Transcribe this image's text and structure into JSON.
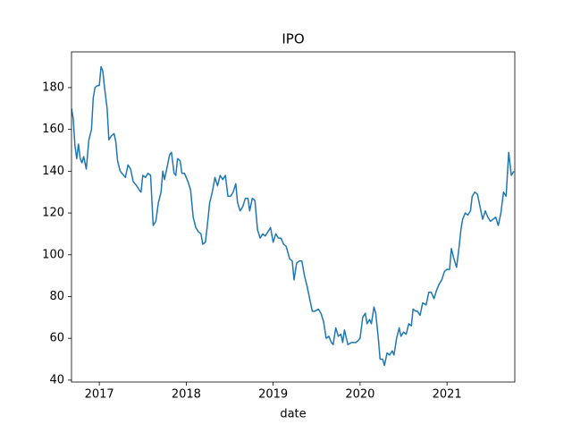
{
  "chart_data": {
    "type": "line",
    "title": "IPO",
    "x_label": "date",
    "x": [
      2016.68,
      2016.7,
      2016.72,
      2016.74,
      2016.76,
      2016.78,
      2016.8,
      2016.82,
      2016.85,
      2016.88,
      2016.91,
      2016.93,
      2016.95,
      2016.98,
      2017.0,
      2017.02,
      2017.04,
      2017.06,
      2017.09,
      2017.11,
      2017.14,
      2017.17,
      2017.19,
      2017.21,
      2017.24,
      2017.28,
      2017.3,
      2017.33,
      2017.36,
      2017.39,
      2017.43,
      2017.46,
      2017.48,
      2017.5,
      2017.53,
      2017.56,
      2017.59,
      2017.62,
      2017.65,
      2017.68,
      2017.71,
      2017.73,
      2017.75,
      2017.78,
      2017.81,
      2017.83,
      2017.86,
      2017.88,
      2017.9,
      2017.93,
      2017.95,
      2017.98,
      2018.02,
      2018.05,
      2018.08,
      2018.11,
      2018.14,
      2018.17,
      2018.19,
      2018.22,
      2018.24,
      2018.27,
      2018.3,
      2018.33,
      2018.36,
      2018.39,
      2018.42,
      2018.45,
      2018.48,
      2018.51,
      2018.54,
      2018.57,
      2018.59,
      2018.62,
      2018.65,
      2018.68,
      2018.71,
      2018.73,
      2018.76,
      2018.79,
      2018.82,
      2018.85,
      2018.88,
      2018.91,
      2018.94,
      2018.97,
      2019.0,
      2019.03,
      2019.06,
      2019.09,
      2019.12,
      2019.15,
      2019.19,
      2019.22,
      2019.24,
      2019.27,
      2019.3,
      2019.33,
      2019.36,
      2019.39,
      2019.42,
      2019.45,
      2019.48,
      2019.52,
      2019.55,
      2019.58,
      2019.61,
      2019.64,
      2019.67,
      2019.69,
      2019.72,
      2019.75,
      2019.78,
      2019.8,
      2019.82,
      2019.86,
      2019.9,
      2019.95,
      2019.98,
      2020.0,
      2020.03,
      2020.06,
      2020.08,
      2020.11,
      2020.13,
      2020.16,
      2020.18,
      2020.21,
      2020.23,
      2020.26,
      2020.28,
      2020.31,
      2020.34,
      2020.37,
      2020.39,
      2020.42,
      2020.45,
      2020.47,
      2020.5,
      2020.53,
      2020.56,
      2020.59,
      2020.61,
      2020.64,
      2020.66,
      2020.69,
      2020.72,
      2020.76,
      2020.79,
      2020.82,
      2020.85,
      2020.88,
      2020.91,
      2020.94,
      2020.97,
      2021.0,
      2021.03,
      2021.05,
      2021.08,
      2021.11,
      2021.14,
      2021.16,
      2021.18,
      2021.21,
      2021.24,
      2021.27,
      2021.29,
      2021.32,
      2021.35,
      2021.38,
      2021.41,
      2021.44,
      2021.47,
      2021.5,
      2021.53,
      2021.56,
      2021.59,
      2021.62,
      2021.65,
      2021.68,
      2021.71,
      2021.74,
      2021.77
    ],
    "series": [
      {
        "color": "#1f77b4",
        "values": [
          170,
          165,
          152,
          146,
          153,
          146,
          144,
          147,
          141,
          155,
          160,
          175,
          180,
          181,
          181,
          190,
          188,
          180,
          170,
          155,
          157,
          158,
          154,
          145,
          140,
          138,
          137,
          143,
          141,
          135,
          133,
          131,
          130,
          138,
          137,
          139,
          138,
          114,
          116,
          125,
          130,
          140,
          136,
          142,
          148,
          149,
          139,
          138,
          146,
          145,
          139,
          139,
          135,
          131,
          118,
          113,
          111,
          110,
          105,
          106,
          113,
          125,
          130,
          137,
          133,
          138,
          136,
          138,
          128,
          128,
          130,
          134,
          125,
          121,
          123,
          127,
          127,
          121,
          127,
          126,
          112,
          108,
          110,
          109,
          111,
          113,
          106,
          110,
          108,
          108,
          105,
          104,
          98,
          97,
          88,
          96,
          97,
          97,
          90,
          85,
          79,
          73,
          73,
          74,
          72,
          68,
          60,
          61,
          58,
          57,
          65,
          61,
          62,
          58,
          64,
          57,
          58,
          58,
          59,
          60,
          70,
          72,
          67,
          69,
          67,
          75,
          72,
          60,
          50,
          50,
          47,
          53,
          52,
          54,
          52,
          60,
          65,
          61,
          63,
          62,
          67,
          66,
          74,
          73,
          73,
          71,
          77,
          76,
          82,
          82,
          79,
          83,
          86,
          88,
          92,
          93,
          93,
          103,
          98,
          94,
          104,
          112,
          117,
          120,
          119,
          121,
          128,
          130,
          129,
          123,
          117,
          121,
          118,
          116,
          117,
          118,
          114,
          120,
          130,
          128,
          149,
          138,
          140
        ]
      }
    ],
    "xlim": [
      2016.68,
      2021.78
    ],
    "ylim": [
      39.1,
      197.1
    ],
    "xticks": [
      2017,
      2018,
      2019,
      2020,
      2021
    ],
    "yticks": [
      40,
      60,
      80,
      100,
      120,
      140,
      160,
      180
    ]
  }
}
